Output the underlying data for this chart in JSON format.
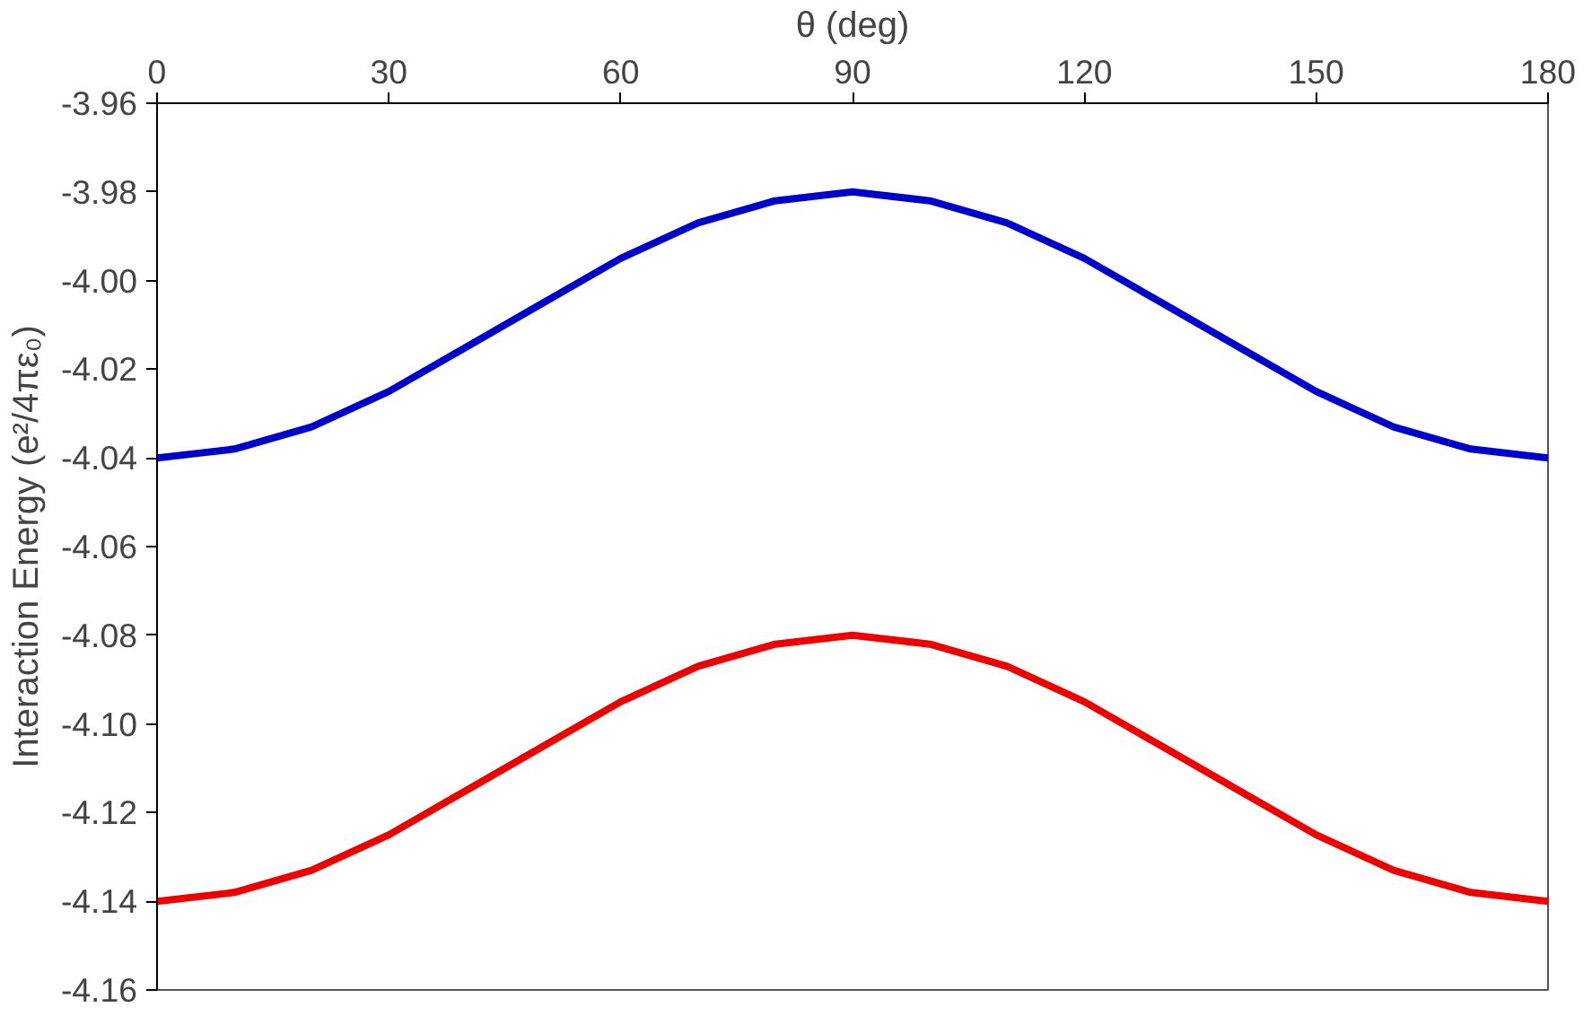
{
  "chart_data": {
    "type": "line",
    "xlabel": "θ (deg)",
    "ylabel": "Interaction Energy (e²/4πε₀)",
    "xlim": [
      0,
      180
    ],
    "xticks": [
      0,
      30,
      60,
      90,
      120,
      150,
      180
    ],
    "ylim": [
      -4.16,
      -3.96
    ],
    "yticks": [
      {
        "value": -4.16,
        "label": "-4.16"
      },
      {
        "value": -4.14,
        "label": "-4.14"
      },
      {
        "value": -4.12,
        "label": "-4.12"
      },
      {
        "value": -4.1,
        "label": "-4.10"
      },
      {
        "value": -4.08,
        "label": "-4.08"
      },
      {
        "value": -4.06,
        "label": "-4.06"
      },
      {
        "value": -4.04,
        "label": "-4.04"
      },
      {
        "value": -4.02,
        "label": "-4.02"
      },
      {
        "value": -4.0,
        "label": "-4.00"
      },
      {
        "value": -3.98,
        "label": "-3.98"
      },
      {
        "value": -3.96,
        "label": "-3.96"
      }
    ],
    "x": [
      0,
      10,
      20,
      30,
      40,
      50,
      60,
      70,
      80,
      90,
      100,
      110,
      120,
      130,
      140,
      150,
      160,
      170,
      180
    ],
    "series": [
      {
        "color": "#0000cc",
        "values": [
          -4.04,
          -4.038,
          -4.033,
          -4.025,
          -4.015,
          -4.005,
          -3.995,
          -3.987,
          -3.982,
          -3.98,
          -3.982,
          -3.987,
          -3.995,
          -4.005,
          -4.015,
          -4.025,
          -4.033,
          -4.038,
          -4.04
        ]
      },
      {
        "color": "#ee0000",
        "values": [
          -4.14,
          -4.138,
          -4.133,
          -4.125,
          -4.115,
          -4.105,
          -4.095,
          -4.087,
          -4.082,
          -4.08,
          -4.082,
          -4.087,
          -4.095,
          -4.105,
          -4.115,
          -4.125,
          -4.133,
          -4.138,
          -4.14
        ]
      }
    ],
    "marker": "none",
    "line_style": "solid"
  }
}
